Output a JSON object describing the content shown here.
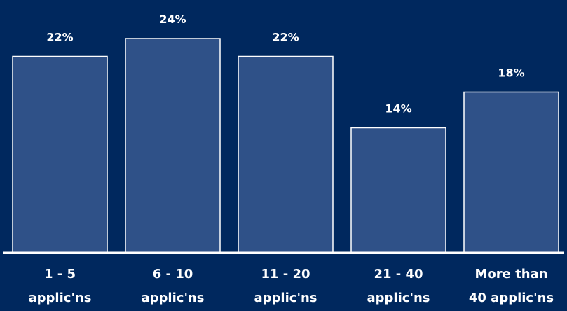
{
  "chart_data": {
    "type": "bar",
    "categories": [
      [
        "1 - 5",
        "applic'ns"
      ],
      [
        "6 - 10",
        "applic'ns"
      ],
      [
        "11 - 20",
        "applic'ns"
      ],
      [
        "21 - 40",
        "applic'ns"
      ],
      [
        "More than",
        "40 applic'ns"
      ]
    ],
    "values": [
      22,
      24,
      22,
      14,
      18
    ],
    "value_labels": [
      "22%",
      "24%",
      "22%",
      "14%",
      "18%"
    ],
    "unit": "%",
    "title": "",
    "xlabel": "",
    "ylabel": "",
    "ylim": [
      0,
      24
    ],
    "grid": false,
    "legend": "none",
    "colors": {
      "background": "#00285e",
      "bar_fill": "#2f5188",
      "bar_stroke": "#ffffff",
      "text": "#ffffff"
    }
  }
}
